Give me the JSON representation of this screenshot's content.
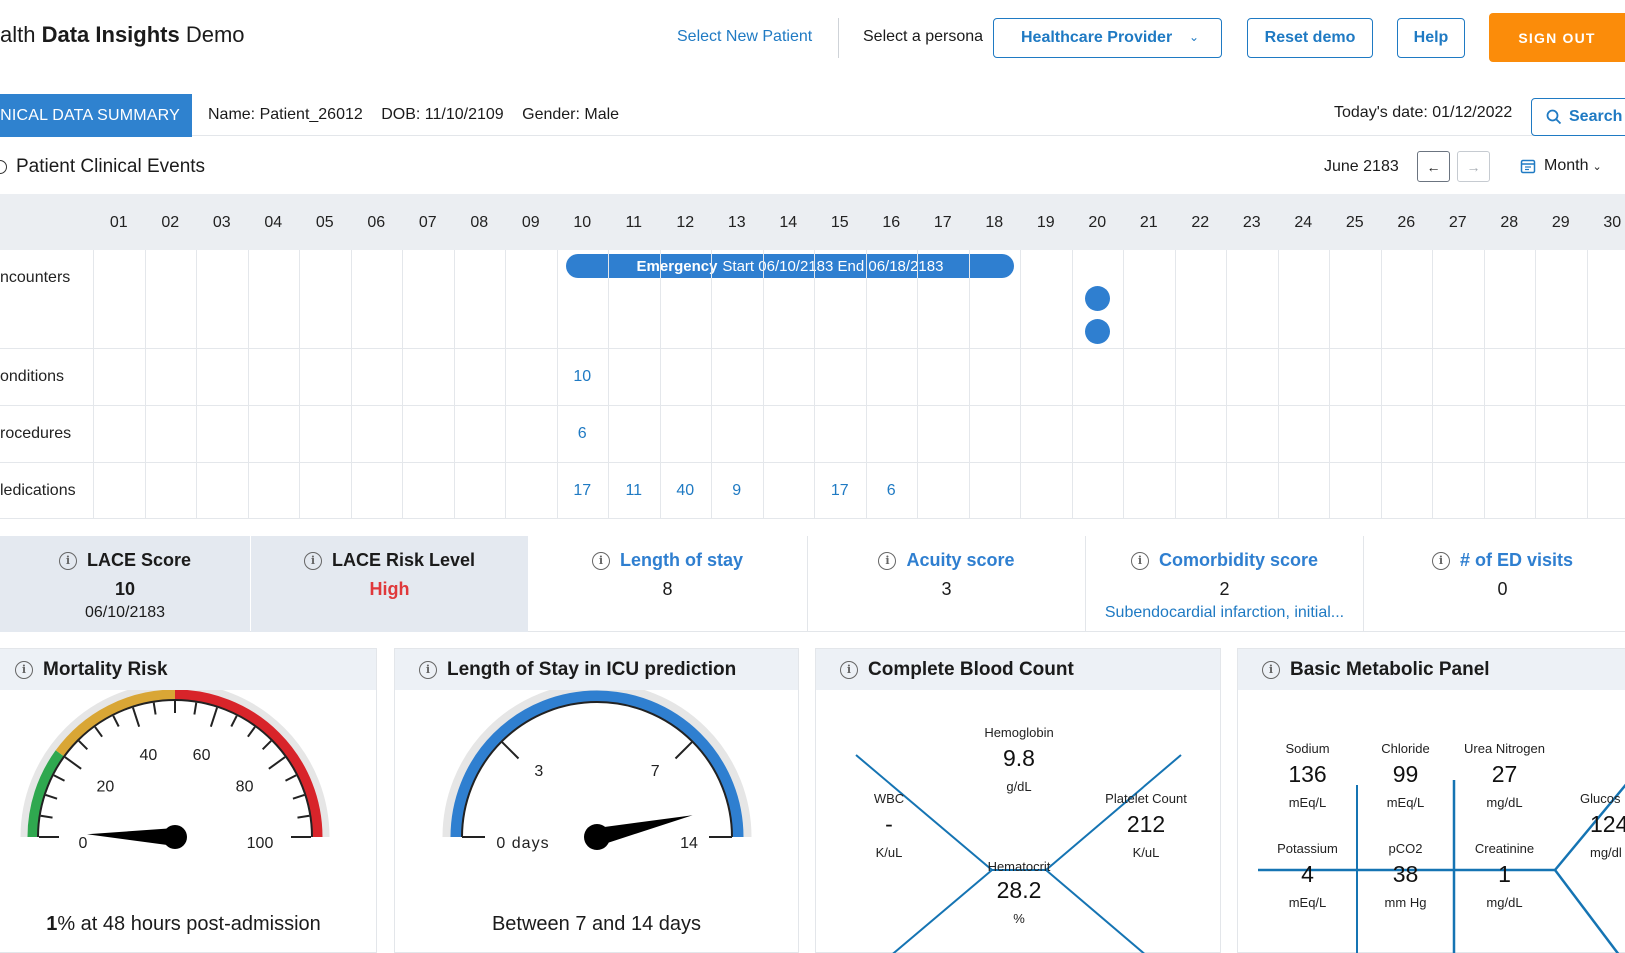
{
  "header": {
    "title_prefix": "alth ",
    "title_bold": "Data Insights",
    "title_suffix": " Demo",
    "select_patient": "Select New Patient",
    "persona_label": "Select a persona",
    "persona_value": "Healthcare Provider",
    "reset": "Reset demo",
    "help": "Help",
    "signout": "SIGN OUT"
  },
  "patient_bar": {
    "tab": "LINICAL DATA SUMMARY",
    "name": "Name: Patient_26012",
    "dob": "DOB: 11/10/2109",
    "gender": "Gender: Male",
    "today": "Today's date: 01/12/2022",
    "search": "Search"
  },
  "events": {
    "title": "Patient Clinical Events",
    "month": "June 2183",
    "view": "Month",
    "prev_icon": "arrow-left-icon",
    "next_icon": "arrow-right-icon",
    "days": [
      "01",
      "02",
      "03",
      "04",
      "05",
      "06",
      "07",
      "08",
      "09",
      "10",
      "11",
      "12",
      "13",
      "14",
      "15",
      "16",
      "17",
      "18",
      "19",
      "20",
      "21",
      "22",
      "23",
      "24",
      "25",
      "26",
      "27",
      "28",
      "29",
      "30"
    ],
    "rows": {
      "encounters": "ncounters",
      "conditions": "onditions",
      "procedures": "rocedures",
      "medications": "ledications"
    },
    "encounter_bar": {
      "type": "Emergency",
      "range": "Start 06/10/2183 End 06/18/2183"
    },
    "conditions_counts": [
      {
        "day": "10",
        "count": "10"
      }
    ],
    "procedures_counts": [
      {
        "day": "10",
        "count": "6"
      }
    ],
    "medications_counts": [
      {
        "day": "10",
        "count": "17"
      },
      {
        "day": "11",
        "count": "11"
      },
      {
        "day": "12",
        "count": "40"
      },
      {
        "day": "13",
        "count": "9"
      },
      {
        "day": "15",
        "count": "17"
      },
      {
        "day": "16",
        "count": "6"
      }
    ],
    "encounter_dots_day": "20"
  },
  "metrics": {
    "lace_score": {
      "title": "LACE Score",
      "value": "10",
      "sub": "06/10/2183"
    },
    "lace_risk": {
      "title": "LACE Risk Level",
      "value": "High"
    },
    "length_of_stay": {
      "title": "Length of stay",
      "value": "8"
    },
    "acuity": {
      "title": "Acuity score",
      "value": "3"
    },
    "comorbidity": {
      "title": "Comorbidity score",
      "value": "2",
      "sub": "Subendocardial infarction, initial..."
    },
    "ed_visits": {
      "title": "# of ED visits",
      "value": "0"
    }
  },
  "mortality": {
    "title": "Mortality Risk",
    "ticks": [
      "0",
      "20",
      "40",
      "60",
      "80",
      "100"
    ],
    "value_percent": 1,
    "caption_bold": "1",
    "caption_rest": "% at 48 hours post-admission",
    "colors": {
      "green": "#2fa84f",
      "yellow": "#d9a635",
      "red": "#d8242a"
    }
  },
  "icu": {
    "title": "Length of Stay in ICU prediction",
    "ticks": [
      "0 days",
      "3",
      "7",
      "14"
    ],
    "needle_value": 12,
    "caption": "Between 7 and 14 days",
    "arc_color": "#2f7fd0"
  },
  "cbc": {
    "title": "Complete Blood Count",
    "hemoglobin": {
      "label": "Hemoglobin",
      "value": "9.8",
      "unit": "g/dL"
    },
    "wbc": {
      "label": "WBC",
      "value": "-",
      "unit": "K/uL"
    },
    "platelet": {
      "label": "Platelet Count",
      "value": "212",
      "unit": "K/uL"
    },
    "hematocrit": {
      "label": "Hematocrit",
      "value": "28.2",
      "unit": "%"
    }
  },
  "bmp": {
    "title": "Basic Metabolic Panel",
    "sodium": {
      "label": "Sodium",
      "value": "136",
      "unit": "mEq/L"
    },
    "chloride": {
      "label": "Chloride",
      "value": "99",
      "unit": "mEq/L"
    },
    "urea": {
      "label": "Urea Nitrogen",
      "value": "27",
      "unit": "mg/dL"
    },
    "potassium": {
      "label": "Potassium",
      "value": "4",
      "unit": "mEq/L"
    },
    "pco2": {
      "label": "pCO2",
      "value": "38",
      "unit": "mm Hg"
    },
    "creatinine": {
      "label": "Creatinine",
      "value": "1",
      "unit": "mg/dL"
    },
    "glucose": {
      "label": "Glucos",
      "value": "124",
      "unit": "mg/dl"
    }
  }
}
